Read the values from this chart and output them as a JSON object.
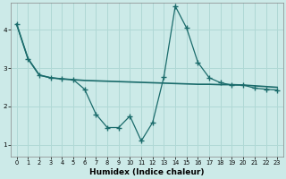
{
  "xlabel": "Humidex (Indice chaleur)",
  "bg_color": "#cceae8",
  "grid_color": "#b0d8d5",
  "line_color": "#1a6b6b",
  "xlim": [
    -0.5,
    23.5
  ],
  "ylim": [
    0.7,
    4.7
  ],
  "yticks": [
    1,
    2,
    3,
    4
  ],
  "xticks": [
    0,
    1,
    2,
    3,
    4,
    5,
    6,
    7,
    8,
    9,
    10,
    11,
    12,
    13,
    14,
    15,
    16,
    17,
    18,
    19,
    20,
    21,
    22,
    23
  ],
  "smooth_x": [
    0,
    1,
    2,
    3,
    4,
    5,
    6,
    7,
    8,
    9,
    10,
    11,
    12,
    13,
    14,
    15,
    16,
    17,
    18,
    19,
    20,
    21,
    22,
    23
  ],
  "smooth_y": [
    4.15,
    3.25,
    2.82,
    2.75,
    2.72,
    2.7,
    2.68,
    2.67,
    2.66,
    2.65,
    2.64,
    2.63,
    2.62,
    2.61,
    2.6,
    2.59,
    2.58,
    2.58,
    2.57,
    2.57,
    2.56,
    2.54,
    2.52,
    2.5
  ],
  "data_x": [
    0,
    1,
    2,
    3,
    4,
    5,
    6,
    7,
    8,
    9,
    10,
    11,
    12,
    13,
    14,
    15,
    16,
    17,
    18,
    19,
    20,
    21,
    22,
    23
  ],
  "data_y": [
    4.15,
    3.25,
    2.82,
    2.75,
    2.72,
    2.7,
    2.45,
    1.8,
    1.45,
    1.45,
    1.75,
    1.1,
    1.58,
    2.78,
    4.62,
    4.05,
    3.15,
    2.75,
    2.62,
    2.56,
    2.56,
    2.48,
    2.45,
    2.43
  ]
}
